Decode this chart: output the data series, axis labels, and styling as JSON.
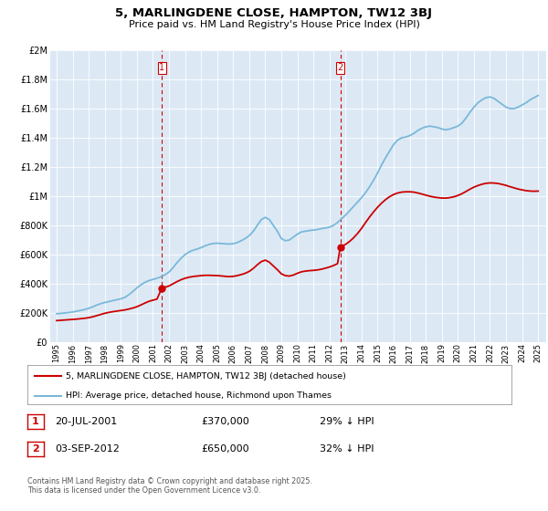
{
  "title": "5, MARLINGDENE CLOSE, HAMPTON, TW12 3BJ",
  "subtitle": "Price paid vs. HM Land Registry's House Price Index (HPI)",
  "bg_color": "#dce9f5",
  "hpi_color": "#7ab8d9",
  "price_color": "#cc0000",
  "vline_color": "#cc0000",
  "ylim": [
    0,
    2000000
  ],
  "yticks": [
    0,
    200000,
    400000,
    600000,
    800000,
    1000000,
    1200000,
    1400000,
    1600000,
    1800000,
    2000000
  ],
  "ytick_labels": [
    "£0",
    "£200K",
    "£400K",
    "£600K",
    "£800K",
    "£1M",
    "£1.2M",
    "£1.4M",
    "£1.6M",
    "£1.8M",
    "£2M"
  ],
  "sale1_year": 2001.55,
  "sale1_price": 370000,
  "sale2_year": 2012.67,
  "sale2_price": 650000,
  "legend_property": "5, MARLINGDENE CLOSE, HAMPTON, TW12 3BJ (detached house)",
  "legend_hpi": "HPI: Average price, detached house, Richmond upon Thames",
  "note1_date": "20-JUL-2001",
  "note1_price": "£370,000",
  "note1_hpi": "29% ↓ HPI",
  "note2_date": "03-SEP-2012",
  "note2_price": "£650,000",
  "note2_hpi": "32% ↓ HPI",
  "footer": "Contains HM Land Registry data © Crown copyright and database right 2025.\nThis data is licensed under the Open Government Licence v3.0.",
  "hpi_data_years": [
    1995.0,
    1995.25,
    1995.5,
    1995.75,
    1996.0,
    1996.25,
    1996.5,
    1996.75,
    1997.0,
    1997.25,
    1997.5,
    1997.75,
    1998.0,
    1998.25,
    1998.5,
    1998.75,
    1999.0,
    1999.25,
    1999.5,
    1999.75,
    2000.0,
    2000.25,
    2000.5,
    2000.75,
    2001.0,
    2001.25,
    2001.5,
    2001.75,
    2002.0,
    2002.25,
    2002.5,
    2002.75,
    2003.0,
    2003.25,
    2003.5,
    2003.75,
    2004.0,
    2004.25,
    2004.5,
    2004.75,
    2005.0,
    2005.25,
    2005.5,
    2005.75,
    2006.0,
    2006.25,
    2006.5,
    2006.75,
    2007.0,
    2007.25,
    2007.5,
    2007.75,
    2008.0,
    2008.25,
    2008.5,
    2008.75,
    2009.0,
    2009.25,
    2009.5,
    2009.75,
    2010.0,
    2010.25,
    2010.5,
    2010.75,
    2011.0,
    2011.25,
    2011.5,
    2011.75,
    2012.0,
    2012.25,
    2012.5,
    2012.75,
    2013.0,
    2013.25,
    2013.5,
    2013.75,
    2014.0,
    2014.25,
    2014.5,
    2014.75,
    2015.0,
    2015.25,
    2015.5,
    2015.75,
    2016.0,
    2016.25,
    2016.5,
    2016.75,
    2017.0,
    2017.25,
    2017.5,
    2017.75,
    2018.0,
    2018.25,
    2018.5,
    2018.75,
    2019.0,
    2019.25,
    2019.5,
    2019.75,
    2020.0,
    2020.25,
    2020.5,
    2020.75,
    2021.0,
    2021.25,
    2021.5,
    2021.75,
    2022.0,
    2022.25,
    2022.5,
    2022.75,
    2023.0,
    2023.25,
    2023.5,
    2023.75,
    2024.0,
    2024.25,
    2024.5,
    2024.75,
    2025.0
  ],
  "hpi_values": [
    195000,
    197000,
    200000,
    203000,
    207000,
    212000,
    218000,
    224000,
    232000,
    242000,
    254000,
    264000,
    272000,
    278000,
    285000,
    291000,
    297000,
    307000,
    325000,
    348000,
    372000,
    393000,
    410000,
    422000,
    430000,
    438000,
    448000,
    462000,
    480000,
    510000,
    545000,
    575000,
    600000,
    618000,
    630000,
    638000,
    648000,
    660000,
    670000,
    676000,
    678000,
    676000,
    674000,
    672000,
    675000,
    682000,
    695000,
    710000,
    730000,
    760000,
    800000,
    840000,
    855000,
    840000,
    800000,
    760000,
    710000,
    695000,
    700000,
    720000,
    740000,
    755000,
    760000,
    765000,
    768000,
    772000,
    778000,
    782000,
    788000,
    800000,
    820000,
    845000,
    870000,
    900000,
    930000,
    960000,
    990000,
    1025000,
    1065000,
    1110000,
    1160000,
    1215000,
    1265000,
    1310000,
    1355000,
    1385000,
    1400000,
    1405000,
    1415000,
    1430000,
    1450000,
    1465000,
    1475000,
    1480000,
    1475000,
    1470000,
    1460000,
    1455000,
    1460000,
    1470000,
    1480000,
    1500000,
    1535000,
    1575000,
    1610000,
    1640000,
    1660000,
    1675000,
    1680000,
    1670000,
    1650000,
    1630000,
    1610000,
    1600000,
    1600000,
    1610000,
    1625000,
    1640000,
    1660000,
    1675000,
    1690000
  ],
  "price_data_years": [
    1995.0,
    1995.25,
    1995.5,
    1995.75,
    1996.0,
    1996.25,
    1996.5,
    1996.75,
    1997.0,
    1997.25,
    1997.5,
    1997.75,
    1998.0,
    1998.25,
    1998.5,
    1998.75,
    1999.0,
    1999.25,
    1999.5,
    1999.75,
    2000.0,
    2000.25,
    2000.5,
    2000.75,
    2001.0,
    2001.25,
    2001.55,
    2002.0,
    2002.25,
    2002.5,
    2002.75,
    2003.0,
    2003.25,
    2003.5,
    2003.75,
    2004.0,
    2004.25,
    2004.5,
    2004.75,
    2005.0,
    2005.25,
    2005.5,
    2005.75,
    2006.0,
    2006.25,
    2006.5,
    2006.75,
    2007.0,
    2007.25,
    2007.5,
    2007.75,
    2008.0,
    2008.25,
    2008.5,
    2008.75,
    2009.0,
    2009.25,
    2009.5,
    2009.75,
    2010.0,
    2010.25,
    2010.5,
    2010.75,
    2011.0,
    2011.25,
    2011.5,
    2011.75,
    2012.0,
    2012.25,
    2012.5,
    2012.67,
    2013.0,
    2013.25,
    2013.5,
    2013.75,
    2014.0,
    2014.25,
    2014.5,
    2014.75,
    2015.0,
    2015.25,
    2015.5,
    2015.75,
    2016.0,
    2016.25,
    2016.5,
    2016.75,
    2017.0,
    2017.25,
    2017.5,
    2017.75,
    2018.0,
    2018.25,
    2018.5,
    2018.75,
    2019.0,
    2019.25,
    2019.5,
    2019.75,
    2020.0,
    2020.25,
    2020.5,
    2020.75,
    2021.0,
    2021.25,
    2021.5,
    2021.75,
    2022.0,
    2022.25,
    2022.5,
    2022.75,
    2023.0,
    2023.25,
    2023.5,
    2023.75,
    2024.0,
    2024.25,
    2024.5,
    2024.75,
    2025.0
  ],
  "price_values": [
    148000,
    150000,
    152000,
    154000,
    156000,
    158000,
    161000,
    164000,
    168000,
    174000,
    182000,
    190000,
    198000,
    204000,
    209000,
    213000,
    217000,
    221000,
    227000,
    234000,
    243000,
    255000,
    268000,
    280000,
    288000,
    295000,
    370000,
    385000,
    400000,
    415000,
    428000,
    438000,
    445000,
    450000,
    453000,
    456000,
    458000,
    458000,
    457000,
    456000,
    454000,
    451000,
    449000,
    451000,
    456000,
    463000,
    472000,
    485000,
    505000,
    530000,
    552000,
    562000,
    548000,
    522000,
    497000,
    468000,
    456000,
    453000,
    460000,
    472000,
    482000,
    487000,
    490000,
    492000,
    495000,
    500000,
    507000,
    515000,
    525000,
    538000,
    650000,
    670000,
    690000,
    715000,
    745000,
    780000,
    820000,
    858000,
    893000,
    925000,
    953000,
    977000,
    997000,
    1012000,
    1022000,
    1028000,
    1030000,
    1030000,
    1028000,
    1022000,
    1015000,
    1007000,
    1000000,
    994000,
    990000,
    987000,
    987000,
    990000,
    996000,
    1005000,
    1017000,
    1032000,
    1048000,
    1062000,
    1073000,
    1082000,
    1088000,
    1091000,
    1090000,
    1087000,
    1081000,
    1074000,
    1065000,
    1057000,
    1049000,
    1043000,
    1038000,
    1035000,
    1034000,
    1035000
  ]
}
